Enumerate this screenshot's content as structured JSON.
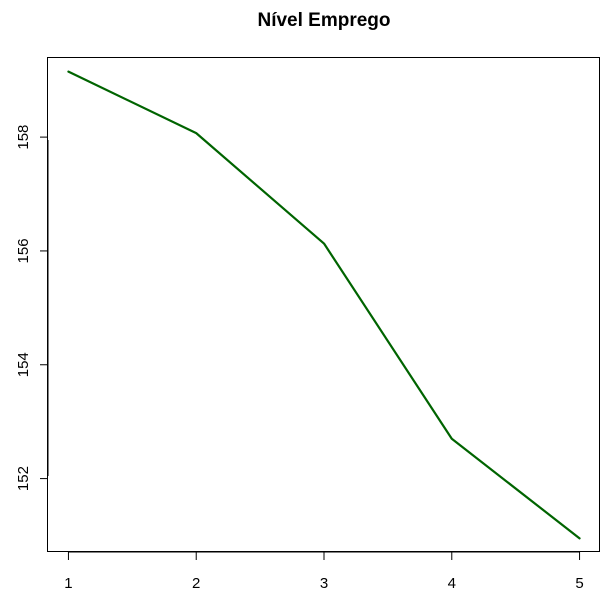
{
  "chart_data": {
    "type": "line",
    "title": "Nível Emprego",
    "xlabel": "",
    "ylabel": "",
    "x": [
      1,
      2,
      3,
      4,
      5
    ],
    "series": [
      {
        "values": [
          159.15,
          158.07,
          156.13,
          152.7,
          150.95
        ],
        "color": "#006400"
      }
    ],
    "x_ticks": [
      "1",
      "2",
      "3",
      "4",
      "5"
    ],
    "y_ticks": [
      "152",
      "154",
      "156",
      "158"
    ],
    "xlim": [
      0.84,
      5.16
    ],
    "ylim": [
      150.71,
      159.39
    ],
    "grid": false,
    "legend": "none"
  }
}
